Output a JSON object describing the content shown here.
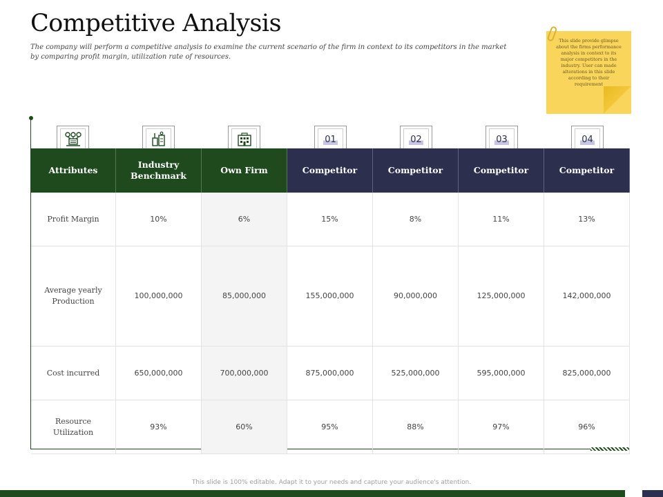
{
  "title": "Competitive Analysis",
  "subtitle": "The company will perform a competitive analysis to examine the current scenario of the firm in context to its competitors in the market by comparing profit margin, utilization  rate of resources.",
  "note": "This slide provide glimpse about the firms performance analysis in context to its major competitors in the industry. User can made alterations in this slide according to their requirement",
  "table": {
    "headers": [
      "Attributes",
      "Industry Benchmark",
      "Own Firm",
      "Competitor",
      "Competitor",
      "Competitor",
      "Competitor"
    ],
    "header_numbers": [
      "01",
      "02",
      "03",
      "04"
    ],
    "rows": [
      {
        "label": "Profit Margin",
        "values": [
          "10%",
          "6%",
          "15%",
          "8%",
          "11%",
          "13%"
        ]
      },
      {
        "label": "Average  yearly Production",
        "values": [
          "100,000,000",
          "85,000,000",
          "155,000,000",
          "90,000,000",
          "125,000,000",
          "142,000,000"
        ]
      },
      {
        "label": "Cost incurred",
        "values": [
          "650,000,000",
          "700,000,000",
          "875,000,000",
          "525,000,000",
          "595,000,000",
          "825,000,000"
        ]
      },
      {
        "label": "Resource Utilization",
        "values": [
          "93%",
          "60%",
          "95%",
          "88%",
          "97%",
          "96%"
        ]
      }
    ]
  },
  "icons": [
    "attributes-network-icon",
    "industry-benchmark-icon",
    "own-firm-building-icon"
  ],
  "colors": {
    "green": "#1e4a1e",
    "navy": "#2c2f4d",
    "note": "#f9d55b"
  },
  "footer": "This slide is 100% editable. Adapt it to your needs and capture your audience's attention."
}
